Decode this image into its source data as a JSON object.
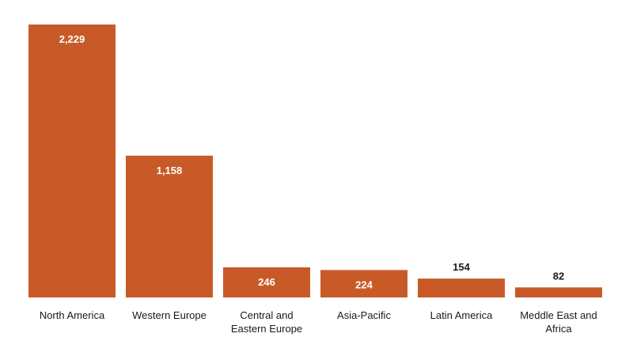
{
  "chart_data": {
    "type": "bar",
    "categories": [
      "North America",
      "Western Europe",
      "Central and Eastern Europe",
      "Asia-Pacific",
      "Latin America",
      "Meddle East and Africa"
    ],
    "category_lines": [
      [
        "North America"
      ],
      [
        "Western Europe"
      ],
      [
        "Central and",
        "Eastern Europe"
      ],
      [
        "Asia-Pacific"
      ],
      [
        "Latin America"
      ],
      [
        "Meddle East and",
        "Africa"
      ]
    ],
    "values": [
      2229,
      1158,
      246,
      224,
      154,
      82
    ],
    "value_labels": [
      "2,229",
      "1,158",
      "246",
      "224",
      "154",
      "82"
    ],
    "title": "",
    "xlabel": "",
    "ylabel": "",
    "ylim": [
      0,
      2229
    ],
    "grid": false,
    "legend": "none",
    "bar_color": "#c85a28"
  }
}
